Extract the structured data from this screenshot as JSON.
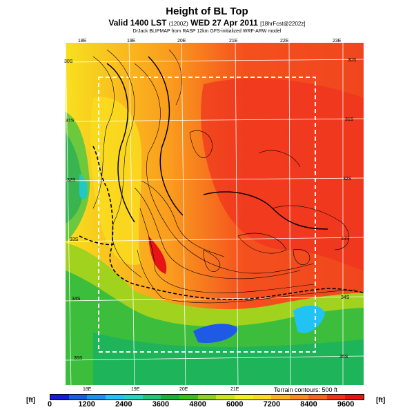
{
  "title": "Height of BL Top",
  "subtitle_main": "Valid 1400 LST",
  "subtitle_small1": "(1200Z)",
  "subtitle_date": "WED 27 Apr 2011",
  "subtitle_small2": "[18hrFcst@2202z]",
  "credit": "DrJack BLIPMAP from RASP 12km GFS-initialized WRF-ARW model",
  "terrain_note": "Terrain contours: 500 ft",
  "unit_left": "[ft]",
  "unit_right": "[ft]",
  "lon_top": [
    "18E",
    "19E",
    "20E",
    "21E",
    "22E",
    "23E"
  ],
  "lon_bottom": [
    "18E",
    "19E",
    "20E",
    "21E"
  ],
  "lat_right": [
    "30S",
    "31S",
    "32S",
    "33S",
    "34S",
    "35S"
  ],
  "lat_left": [
    "30S",
    "31S",
    "32S",
    "33S",
    "34S",
    "35S"
  ],
  "colorbar_ticks": [
    "0",
    "1200",
    "2400",
    "3600",
    "4800",
    "6000",
    "7200",
    "8400",
    "9600"
  ],
  "colors": {
    "scale": [
      "#1a1adc",
      "#1f5ae6",
      "#1e90f0",
      "#21c3f5",
      "#22d6c0",
      "#1ec878",
      "#17b23c",
      "#3cbe1e",
      "#8cd21e",
      "#c8e61a",
      "#f0f01e",
      "#fadc1e",
      "#fab41e",
      "#fa8c1e",
      "#f8641c",
      "#f0321e",
      "#e61414"
    ],
    "ocean_green": "#32b450",
    "inland_red": "#f0461e"
  }
}
